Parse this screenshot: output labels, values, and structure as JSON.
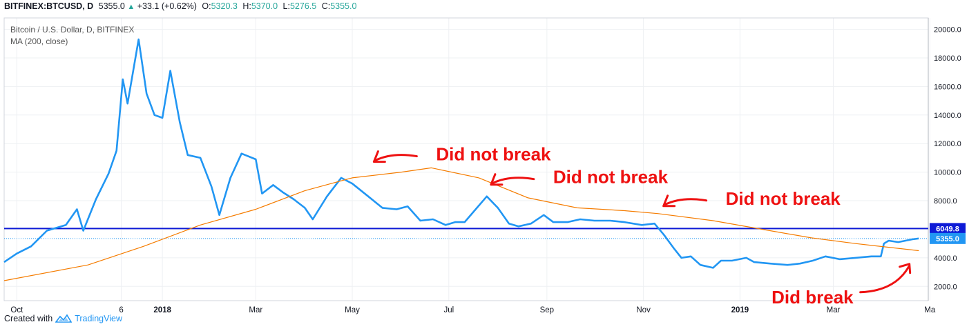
{
  "header": {
    "symbol": "BITFINEX:BTCUSD, D",
    "last": "5355.0",
    "change": "+33.1 (+0.62%)",
    "o_label": "O:",
    "o": "5320.3",
    "h_label": "H:",
    "h": "5370.0",
    "l_label": "L:",
    "l": "5276.5",
    "c_label": "C:",
    "c": "5355.0"
  },
  "footer": {
    "created_with": "Created with",
    "brand": "TradingView"
  },
  "chart_data": {
    "type": "line",
    "title": "Bitcoin / U.S. Dollar, D, BITFINEX",
    "subtitle": "MA (200, close)",
    "x_ticks": [
      "Oct",
      "6",
      "2018",
      "Mar",
      "May",
      "Jul",
      "Sep",
      "Nov",
      "2019",
      "Mar",
      "Ma"
    ],
    "y_ticks": [
      "20000.0",
      "18000.0",
      "16000.0",
      "14000.0",
      "12000.0",
      "10000.0",
      "8000.0",
      "6000.0",
      "4000.0",
      "2000.0"
    ],
    "ylim": [
      1000,
      20800
    ],
    "xlim": [
      "2017-09-23",
      "2019-04-30"
    ],
    "series": [
      {
        "role": "price",
        "color": "#2196f3",
        "x": [
          "2017-09-23",
          "2017-10-01",
          "2017-10-10",
          "2017-10-20",
          "2017-11-01",
          "2017-11-08",
          "2017-11-12",
          "2017-11-20",
          "2017-11-28",
          "2017-12-03",
          "2017-12-07",
          "2017-12-10",
          "2017-12-17",
          "2017-12-22",
          "2017-12-27",
          "2018-01-01",
          "2018-01-06",
          "2018-01-12",
          "2018-01-17",
          "2018-01-25",
          "2018-02-01",
          "2018-02-06",
          "2018-02-13",
          "2018-02-20",
          "2018-03-01",
          "2018-03-05",
          "2018-03-12",
          "2018-03-18",
          "2018-03-25",
          "2018-04-01",
          "2018-04-06",
          "2018-04-15",
          "2018-04-24",
          "2018-05-01",
          "2018-05-10",
          "2018-05-20",
          "2018-05-29",
          "2018-06-05",
          "2018-06-13",
          "2018-06-21",
          "2018-06-29",
          "2018-07-05",
          "2018-07-11",
          "2018-07-18",
          "2018-07-25",
          "2018-08-01",
          "2018-08-08",
          "2018-08-14",
          "2018-08-22",
          "2018-08-30",
          "2018-09-05",
          "2018-09-14",
          "2018-09-22",
          "2018-10-01",
          "2018-10-11",
          "2018-10-20",
          "2018-10-31",
          "2018-11-08",
          "2018-11-14",
          "2018-11-20",
          "2018-11-25",
          "2018-12-01",
          "2018-12-07",
          "2018-12-15",
          "2018-12-20",
          "2018-12-27",
          "2019-01-05",
          "2019-01-10",
          "2019-01-20",
          "2019-01-31",
          "2019-02-08",
          "2019-02-16",
          "2019-02-24",
          "2019-03-05",
          "2019-03-15",
          "2019-03-25",
          "2019-03-31",
          "2019-04-02",
          "2019-04-05",
          "2019-04-11",
          "2019-04-20",
          "2019-04-24"
        ],
        "y": [
          3700,
          4300,
          4800,
          5900,
          6300,
          7400,
          5900,
          8100,
          9900,
          11500,
          16500,
          14800,
          19300,
          15500,
          14000,
          13800,
          17100,
          13500,
          11200,
          11000,
          9000,
          7000,
          9600,
          11300,
          10900,
          8500,
          9100,
          8600,
          8100,
          7500,
          6700,
          8300,
          9600,
          9200,
          8400,
          7500,
          7400,
          7600,
          6600,
          6700,
          6300,
          6500,
          6500,
          7400,
          8300,
          7500,
          6400,
          6200,
          6400,
          7000,
          6500,
          6500,
          6700,
          6600,
          6600,
          6500,
          6300,
          6400,
          5600,
          4700,
          4000,
          4100,
          3500,
          3300,
          3800,
          3800,
          4000,
          3700,
          3600,
          3500,
          3600,
          3800,
          4100,
          3900,
          4000,
          4100,
          4100,
          5000,
          5200,
          5100,
          5300,
          5355
        ]
      },
      {
        "role": "MA (200, close)",
        "color": "#f57c00",
        "x": [
          "2017-09-23",
          "2017-11-15",
          "2017-12-20",
          "2018-01-25",
          "2018-03-01",
          "2018-04-01",
          "2018-05-01",
          "2018-06-01",
          "2018-06-20",
          "2018-07-20",
          "2018-08-20",
          "2018-09-20",
          "2018-10-20",
          "2018-11-10",
          "2018-12-15",
          "2019-01-15",
          "2019-02-15",
          "2019-03-15",
          "2019-04-24"
        ],
        "y": [
          2400,
          3500,
          4800,
          6300,
          7400,
          8700,
          9600,
          10000,
          10300,
          9600,
          8200,
          7500,
          7300,
          7100,
          6600,
          6000,
          5400,
          5000,
          4500
        ]
      }
    ],
    "horizontal_lines": [
      {
        "value": 6049.8,
        "label": "6049.8",
        "color": "#0d1ad6"
      },
      {
        "value": 5355.0,
        "label": "5355.0",
        "color": "#2196f3",
        "dotted": true
      }
    ],
    "annotations": [
      {
        "text": "Did not break",
        "date": "2018-05-09",
        "value": 10100
      },
      {
        "text": "Did not break",
        "date": "2018-07-22",
        "value": 8500
      },
      {
        "text": "Did not break",
        "date": "2018-11-08",
        "value": 7000
      },
      {
        "text": "Did break",
        "date": "2019-04-22",
        "value": 4100
      }
    ],
    "annotation_color": "#ee1111",
    "grid": true
  }
}
